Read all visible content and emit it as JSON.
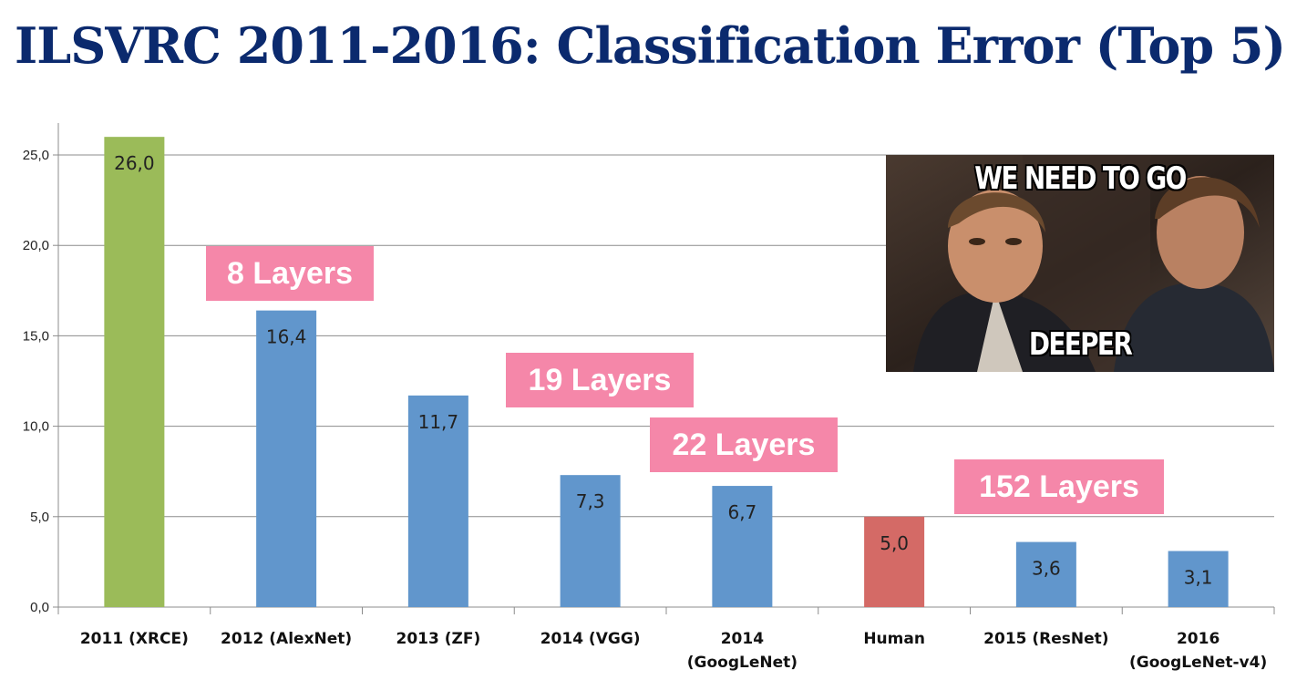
{
  "slide": {
    "title": "ILSVRC 2011-2016: Classification Error (Top 5)"
  },
  "chart_data": {
    "type": "bar",
    "categories": [
      "2011 (XRCE)",
      "2012 (AlexNet)",
      "2013 (ZF)",
      "2014 (VGG)",
      "2014 (GoogLeNet)",
      "Human",
      "2015 (ResNet)",
      "2016 (GoogLeNet-v4)"
    ],
    "category_lines": [
      [
        "2011 (XRCE)"
      ],
      [
        "2012 (AlexNet)"
      ],
      [
        "2013 (ZF)"
      ],
      [
        "2014 (VGG)"
      ],
      [
        "2014",
        "(GoogLeNet)"
      ],
      [
        "Human"
      ],
      [
        "2015 (ResNet)"
      ],
      [
        "2016",
        "(GoogLeNet-v4)"
      ]
    ],
    "values": [
      26.0,
      16.4,
      11.7,
      7.3,
      6.7,
      5.0,
      3.6,
      3.1
    ],
    "value_labels": [
      "26,0",
      "16,4",
      "11,7",
      "7,3",
      "6,7",
      "5,0",
      "3,6",
      "3,1"
    ],
    "bar_colors": [
      "#9bbb59",
      "#6196cc",
      "#6196cc",
      "#6196cc",
      "#6196cc",
      "#d46a66",
      "#6196cc",
      "#6196cc"
    ],
    "ylim": [
      0,
      25
    ],
    "yticks": [
      0,
      5,
      10,
      15,
      20,
      25
    ],
    "ytick_labels": [
      "0,0",
      "5,0",
      "10,0",
      "15,0",
      "20,0",
      "25,0"
    ],
    "grid": true,
    "title": "",
    "xlabel": "",
    "ylabel": ""
  },
  "annotations": [
    {
      "id": "alexnet",
      "text": "8 Layers"
    },
    {
      "id": "vgg",
      "text": "19 Layers"
    },
    {
      "id": "googlenet",
      "text": "22 Layers"
    },
    {
      "id": "resnet",
      "text": "152 Layers"
    }
  ],
  "meme": {
    "top_text": "WE NEED TO GO",
    "bottom_text": "DEEPER"
  },
  "colors": {
    "title": "#0b2a6e",
    "callout": "#f587a9",
    "grid": "#8c8c8c",
    "axis_text": "#222222"
  }
}
